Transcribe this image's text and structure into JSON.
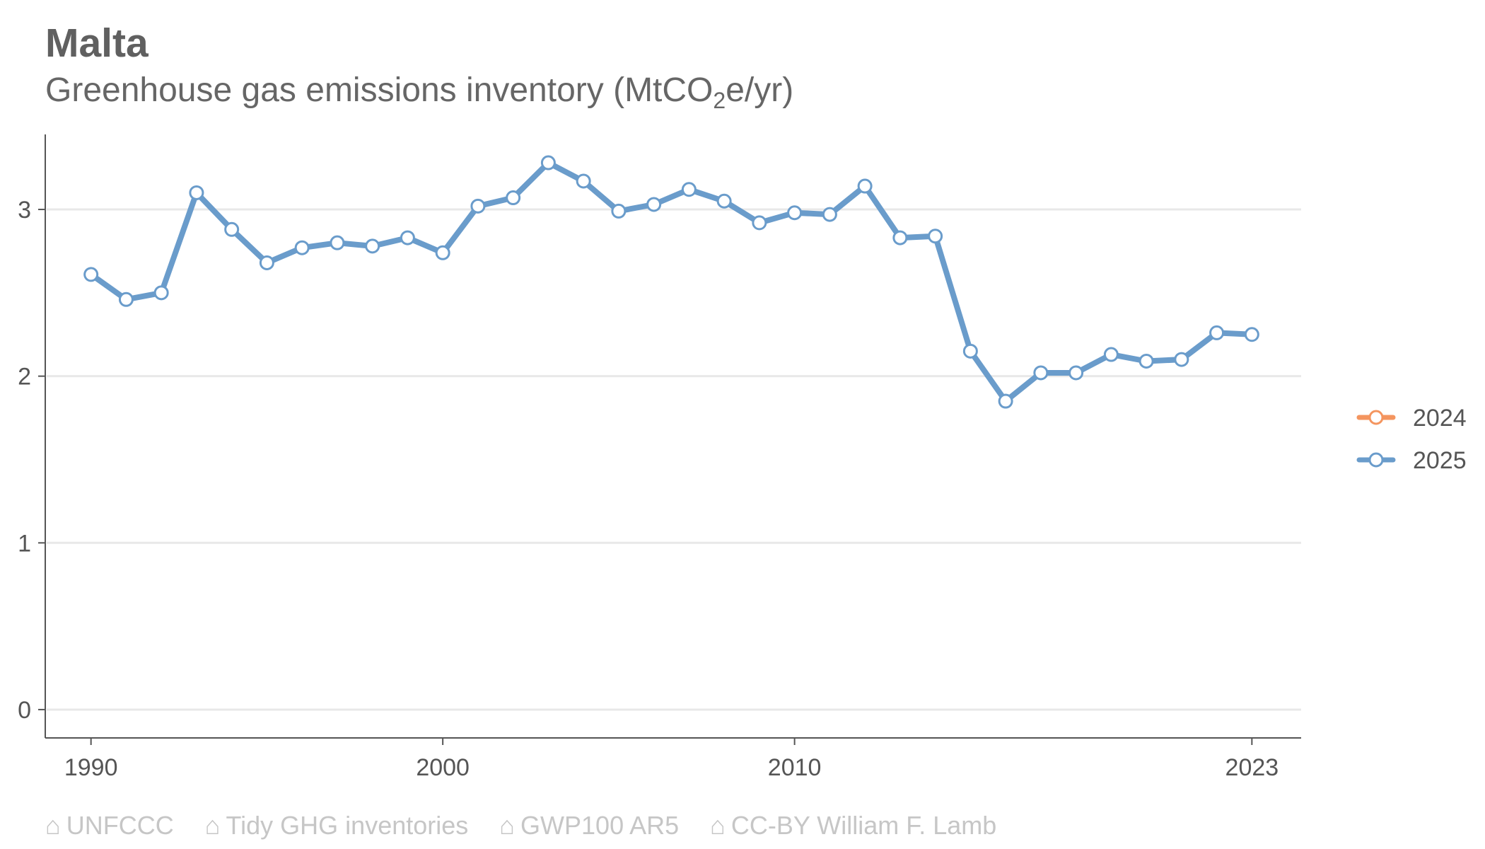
{
  "title": "Malta",
  "subtitle": {
    "before": "Greenhouse gas emissions inventory (MtCO",
    "subscript": "2",
    "after": "e/yr)"
  },
  "footer": {
    "icon": "home-icon",
    "icon_glyph": "⌂",
    "sources": [
      "UNFCCC",
      "Tidy GHG inventories",
      "GWP100 AR5",
      "CC-BY William F. Lamb"
    ]
  },
  "colors": {
    "series_2024": "#f4955f",
    "series_2025": "#6a9ccb",
    "gridline": "#e8e8e8",
    "axis": "#555555"
  },
  "chart_data": {
    "type": "line",
    "x_ticks": [
      1990,
      2000,
      2010,
      2023
    ],
    "y_ticks": [
      0,
      1,
      2,
      3
    ],
    "xlim": [
      1988.7,
      2024.4
    ],
    "ylim": [
      -0.17,
      3.45
    ],
    "grid": "horizontal",
    "legend_position": "right",
    "series": [
      {
        "name": "2024",
        "color": "#f4955f",
        "x": [],
        "y": []
      },
      {
        "name": "2025",
        "color": "#6a9ccb",
        "x": [
          1990,
          1991,
          1992,
          1993,
          1994,
          1995,
          1996,
          1997,
          1998,
          1999,
          2000,
          2001,
          2002,
          2003,
          2004,
          2005,
          2006,
          2007,
          2008,
          2009,
          2010,
          2011,
          2012,
          2013,
          2014,
          2015,
          2016,
          2017,
          2018,
          2019,
          2020,
          2021,
          2022,
          2023
        ],
        "y": [
          2.61,
          2.46,
          2.5,
          3.1,
          2.88,
          2.68,
          2.77,
          2.8,
          2.78,
          2.83,
          2.74,
          3.02,
          3.07,
          3.28,
          3.17,
          2.99,
          3.03,
          3.12,
          3.05,
          2.92,
          2.98,
          2.97,
          3.14,
          2.83,
          2.84,
          2.15,
          1.85,
          2.02,
          2.02,
          2.13,
          2.09,
          2.1,
          2.26,
          2.25
        ]
      }
    ]
  }
}
